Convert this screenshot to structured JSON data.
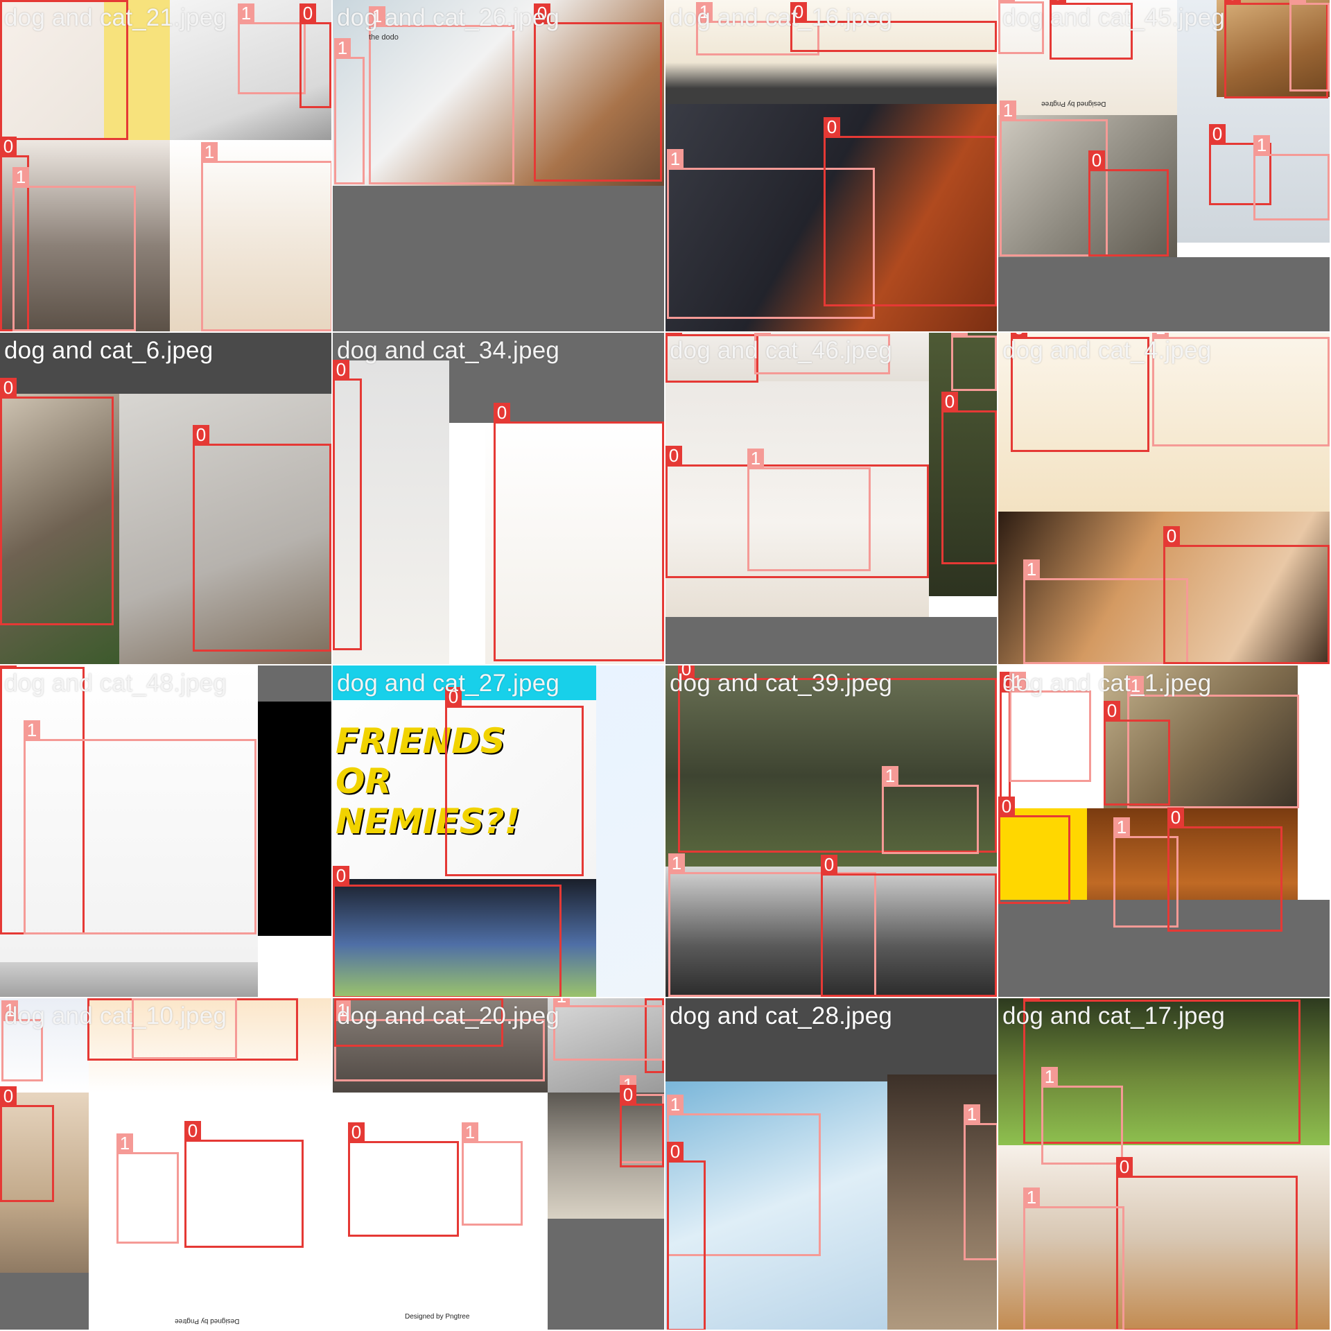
{
  "palette": {
    "class_0": "#e53935",
    "class_1": "#f59a96",
    "padding_gray": "#6a6a6a",
    "label_bar_gray": "#4a4a4a"
  },
  "tiles": [
    {
      "filename": "dog and cat_21.jpeg",
      "pieces": [
        {
          "bg": "linear-gradient(135deg,#f7f0ea,#e9e2da 60%,#c8c0b7)"
        },
        {
          "bg": "linear-gradient(160deg,#f4f4f4,#d9d9d9 70%,#9a9a9a)"
        },
        {
          "bg": "linear-gradient(180deg,#eee8e2,#8b8077 55%,#5b5046)"
        },
        {
          "bg": "linear-gradient(180deg,#ffffff,#f2e9dd 50%,#e7d6c0)"
        },
        {
          "bg": "#f7e27c"
        }
      ],
      "labels": [
        "0",
        "1",
        "0",
        "1",
        "0",
        "1",
        "1"
      ]
    },
    {
      "filename": "dog and cat_26.jpeg",
      "pieces": [
        {
          "bg": "linear-gradient(135deg,#c9d6dd,#f2f2f2 40%,#a8734a 75%,#6b4a33)"
        },
        {
          "bg": "#6a6a6a"
        }
      ],
      "labels": [
        "1",
        "0",
        "1"
      ],
      "logo_text": "the dodo"
    },
    {
      "filename": "dog and cat_16.jpeg",
      "pieces": [
        {
          "bg": "linear-gradient(180deg,#fbf7ef,#efe6d4 60%,#3e3e3e 85%)"
        },
        {
          "bg": "linear-gradient(120deg,#3a3c45,#22232b 45%,#b04a1f 70%,#7a2e12)"
        }
      ],
      "labels": [
        "1",
        "0",
        "1",
        "0",
        "0",
        "1",
        "1"
      ]
    },
    {
      "filename": "dog and cat_45.jpeg",
      "pieces": [
        {
          "bg": "linear-gradient(180deg,#fbfbfb,#efe7da)"
        },
        {
          "bg": "linear-gradient(135deg,#cfcac0,#8e8a80 55%,#5f5a50)"
        },
        {
          "bg": "linear-gradient(180deg,#e9eef3,#cfd6dc)"
        },
        {
          "bg": "linear-gradient(160deg,#d9b07a,#9a6534 60%,#6e451f)"
        },
        {
          "bg": "#6a6a6a"
        }
      ],
      "labels": [
        "1",
        "0",
        "0",
        "1",
        "1",
        "0",
        "0",
        "1"
      ],
      "watermark": "Designed by Pngtree"
    },
    {
      "filename": "dog and cat_6.jpeg",
      "pieces": [
        {
          "bg": "#4a4a4a"
        },
        {
          "bg": "linear-gradient(150deg,#cfc4b3,#6f6252 50%,#3c5a2c)"
        },
        {
          "bg": "linear-gradient(160deg,#d8d6d2,#b6b2ad 60%,#7a6a58)"
        }
      ],
      "labels": [
        "0",
        "0"
      ]
    },
    {
      "filename": "dog and cat_34.jpeg",
      "pieces": [
        {
          "bg": "#6a6a6a"
        },
        {
          "bg": "linear-gradient(180deg,#e2e2e2,#f4f2ee)"
        },
        {
          "bg": "#ffffff"
        },
        {
          "bg": "linear-gradient(180deg,#ffffff,#f3efe9)"
        }
      ],
      "labels": [
        "0",
        "0"
      ]
    },
    {
      "filename": "dog and cat_46.jpeg",
      "pieces": [
        {
          "bg": "linear-gradient(180deg,#f1eeea,#e4dfd8)"
        },
        {
          "bg": "linear-gradient(180deg,#4e5a35,#2d3320)"
        },
        {
          "bg": "linear-gradient(180deg,#ece9e5,#f6f3ef 60%,#e7dfd4)"
        },
        {
          "bg": "#6a6a6a"
        }
      ],
      "labels": [
        "0",
        "1",
        "1",
        "0",
        "0",
        "1"
      ]
    },
    {
      "filename": "dog and cat_4.jpeg",
      "pieces": [
        {
          "bg": "linear-gradient(180deg,#fbf5ea,#f3e2c2)"
        },
        {
          "bg": "#ffffff"
        },
        {
          "bg": "linear-gradient(120deg,#2c1c12,#d49a62 40%,#e9c8a6 75%,#3a2a1c)"
        }
      ],
      "labels": [
        "0",
        "1",
        "1",
        "0"
      ]
    },
    {
      "filename": "dog and cat_48.jpeg",
      "pieces": [
        {
          "bg": "linear-gradient(180deg,#ffffff,#f2f2f2)"
        },
        {
          "bg": "#000000"
        },
        {
          "bg": "#6a6a6a"
        },
        {
          "bg": "linear-gradient(180deg,#cfcfcf,#9f9f9f)"
        }
      ],
      "labels": [
        "0",
        "1"
      ]
    },
    {
      "filename": "dog and cat_27.jpeg",
      "pieces": [
        {
          "bg": "linear-gradient(135deg,#ffffff,#f4f4f4)"
        },
        {
          "bg": "#18d0ea"
        },
        {
          "bg": "linear-gradient(160deg,#e9f3ff,#eef5fb)"
        },
        {
          "bg": "linear-gradient(180deg,#1a1f2a,#4f6fa6 55%,#9cc56a)"
        }
      ],
      "labels": [
        "0",
        "0",
        "0",
        "1"
      ],
      "poster_text": "FRIENDS OR NEMIES?!"
    },
    {
      "filename": "dog and cat_39.jpeg",
      "pieces": [
        {
          "bg": "linear-gradient(180deg,#6b7255,#3e4431 55%,#5b6a3e)"
        },
        {
          "bg": "linear-gradient(180deg,#d7d7d7,#5a5a5a 60%,#2a2a2a)"
        }
      ],
      "labels": [
        "0",
        "1",
        "1",
        "0"
      ]
    },
    {
      "filename": "dog and cat_1.jpeg",
      "pieces": [
        {
          "bg": "#ffffff"
        },
        {
          "bg": "linear-gradient(135deg,#c6b48e,#7d6a4c 55%,#3b3328)"
        },
        {
          "bg": "#ffd700"
        },
        {
          "bg": "linear-gradient(180deg,#7a3b10,#c06a25 55%,#5b2a0d)"
        },
        {
          "bg": "#6a6a6a"
        }
      ],
      "labels": [
        "0",
        "1",
        "1",
        "0",
        "0",
        "1",
        "0"
      ]
    },
    {
      "filename": "dog and cat_10.jpeg",
      "pieces": [
        {
          "bg": "linear-gradient(180deg,#eaeef5,#ffffff)"
        },
        {
          "bg": "linear-gradient(180deg,#fbe6c9,#ffffff)"
        },
        {
          "bg": "linear-gradient(180deg,#e7d5bf,#c2a98a 60%,#8f7a63)"
        },
        {
          "bg": "#ffffff"
        },
        {
          "bg": "#6a6a6a"
        }
      ],
      "labels": [
        "1",
        "0",
        "1",
        "0",
        "1",
        "0"
      ],
      "watermark": "Designed by Pngtree"
    },
    {
      "filename": "dog and cat_20.jpeg",
      "pieces": [
        {
          "bg": "linear-gradient(180deg,#8a817a,#4e4742)"
        },
        {
          "bg": "linear-gradient(160deg,#d9d9d9,#9a9a9a)"
        },
        {
          "bg": "linear-gradient(180deg,#5b5751,#a7a197 50%,#d9d2c4)"
        },
        {
          "bg": "#ffffff"
        },
        {
          "bg": "#6a6a6a"
        }
      ],
      "labels": [
        "1",
        "0",
        "0",
        "1",
        "1",
        "0",
        "0",
        "1"
      ],
      "watermark": "Designed by Pngtree"
    },
    {
      "filename": "dog and cat_28.jpeg",
      "pieces": [
        {
          "bg": "#4a4a4a"
        },
        {
          "bg": "linear-gradient(160deg,#7ab6d9,#dfeef7 50%,#b9d4e8)"
        },
        {
          "bg": "linear-gradient(180deg,#3c3028,#8a7560 60%,#b09a7f)"
        }
      ],
      "labels": [
        "1",
        "0",
        "1"
      ]
    },
    {
      "filename": "dog and cat_17.jpeg",
      "pieces": [
        {
          "bg": "linear-gradient(180deg,#2d3a1f,#6f8a3a 55%,#8ec04f)"
        },
        {
          "bg": "linear-gradient(180deg,#f7f1ea,#d8c7b3 50%,#c28a4f)"
        }
      ],
      "labels": [
        "0",
        "1",
        "0",
        "1"
      ]
    }
  ]
}
